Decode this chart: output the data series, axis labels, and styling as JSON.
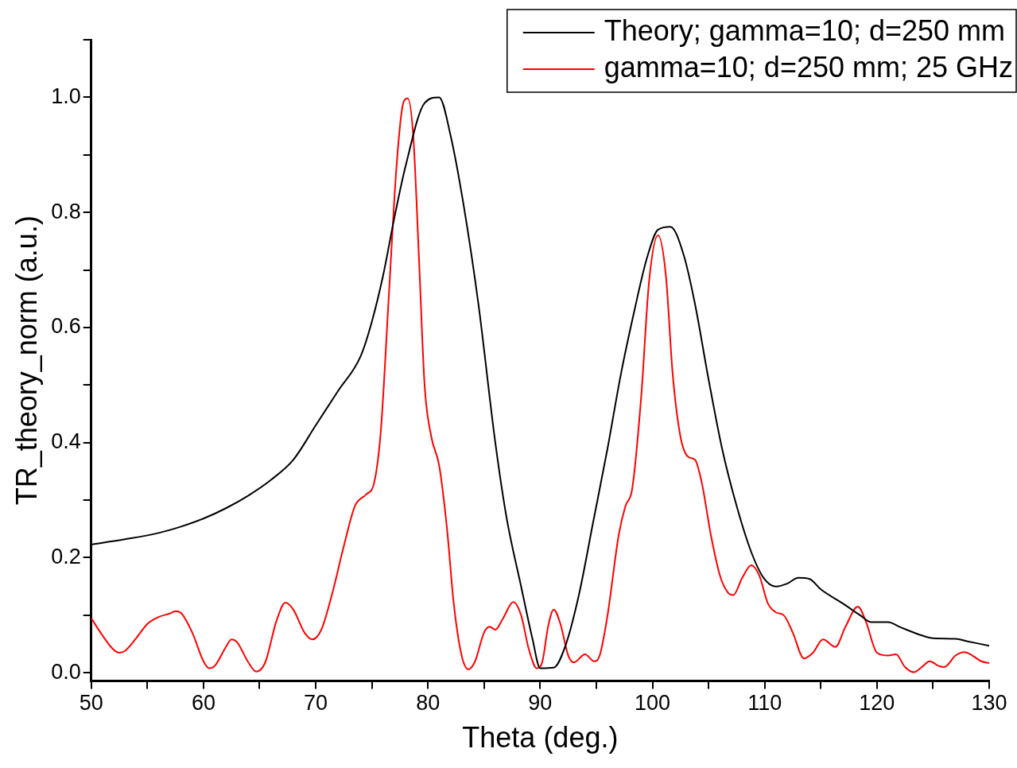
{
  "chart_data": {
    "type": "line",
    "xlabel": "Theta (deg.)",
    "ylabel": "TR_theory_norm (a.u.)",
    "xlim": [
      50,
      130
    ],
    "xticks": [
      50,
      {
        "value": 55,
        "label": null
      },
      60,
      {
        "value": 65,
        "label": null
      },
      70,
      {
        "value": 75,
        "label": null
      },
      80,
      {
        "value": 85,
        "label": null
      },
      90,
      {
        "value": 95,
        "label": null
      },
      100,
      {
        "value": 105,
        "label": null
      },
      110,
      {
        "value": 115,
        "label": null
      },
      120,
      {
        "value": 125,
        "label": null
      },
      130
    ],
    "ylim": [
      -0.014,
      1.1
    ],
    "yticks": [
      {
        "value": 0,
        "label": "0.0"
      },
      {
        "value": 0.1,
        "label": null
      },
      {
        "value": 0.2,
        "label": "0.2"
      },
      {
        "value": 0.3,
        "label": null
      },
      {
        "value": 0.4,
        "label": "0.4"
      },
      {
        "value": 0.5,
        "label": null
      },
      {
        "value": 0.6,
        "label": "0.6"
      },
      {
        "value": 0.7,
        "label": null
      },
      {
        "value": 0.8,
        "label": "0.8"
      },
      {
        "value": 0.9,
        "label": null
      },
      {
        "value": 1.0,
        "label": "1.0"
      },
      {
        "value": 1.1,
        "label": null
      }
    ],
    "legend": "top right",
    "marker": "none",
    "line_style": "solid",
    "series": [
      {
        "name": "Theory; gamma=10; d=250 mm",
        "color": "#000000",
        "x": [
          50,
          53,
          56,
          58,
          60,
          62,
          64,
          66,
          68,
          70,
          72,
          74,
          75,
          76,
          77,
          78,
          79.7,
          81,
          82,
          83.2,
          84.5,
          86,
          87,
          88.3,
          89.3,
          90,
          91.2,
          92.3,
          93.5,
          94.7,
          96,
          97.2,
          98.4,
          99.5,
          100.5,
          101.6,
          102.8,
          103.8,
          105,
          106.2,
          107.5,
          108.8,
          109.9,
          111,
          112,
          113,
          114,
          115,
          117,
          118.5,
          119.5,
          121,
          122,
          124,
          125,
          127,
          128,
          130
        ],
        "values": [
          0.223,
          0.232,
          0.243,
          0.254,
          0.268,
          0.286,
          0.308,
          0.335,
          0.37,
          0.43,
          0.49,
          0.55,
          0.61,
          0.69,
          0.79,
          0.88,
          0.99,
          1.0,
          0.935,
          0.81,
          0.64,
          0.4,
          0.27,
          0.15,
          0.06,
          0.008,
          0.009,
          0.05,
          0.14,
          0.26,
          0.39,
          0.52,
          0.63,
          0.72,
          0.77,
          0.775,
          0.725,
          0.64,
          0.51,
          0.39,
          0.29,
          0.21,
          0.165,
          0.15,
          0.155,
          0.165,
          0.163,
          0.145,
          0.12,
          0.1,
          0.088,
          0.088,
          0.08,
          0.065,
          0.06,
          0.059,
          0.055,
          0.047
        ]
      },
      {
        "name": "gamma=10; d=250 mm; 25 GHz",
        "color": "#ff0000",
        "x": [
          50,
          51,
          52,
          52.5,
          53,
          54,
          55,
          56,
          57,
          57.5,
          58,
          59,
          60,
          60.5,
          61,
          62,
          62.5,
          63,
          64,
          64.7,
          65.5,
          66.5,
          67.3,
          68,
          69,
          69.7,
          70.5,
          71.5,
          72.5,
          73.5,
          74.5,
          75.2,
          75.8,
          76.5,
          77.2,
          77.8,
          78.2,
          78.7,
          79.2,
          79.7,
          80.3,
          81,
          81.7,
          82.3,
          83,
          83.6,
          84.2,
          85,
          85.5,
          86,
          86.7,
          87.6,
          88.3,
          89,
          89.7,
          90.2,
          90.7,
          91.2,
          91.8,
          92.5,
          93,
          94,
          94.8,
          95.3,
          96,
          97,
          97.6,
          98.2,
          99,
          99.7,
          100.5,
          101.2,
          101.8,
          102.5,
          103.2,
          103.8,
          104.4,
          105.2,
          106,
          106.7,
          107.2,
          108,
          108.8,
          109.5,
          110.3,
          111,
          111.7,
          112.5,
          113.5,
          114.3,
          115.2,
          116.3,
          117.2,
          118.3,
          119,
          120,
          121,
          121.7,
          122.5,
          123.3,
          124,
          124.7,
          125.5,
          126,
          127,
          127.8,
          128.5,
          129.3,
          130
        ],
        "values": [
          0.095,
          0.065,
          0.04,
          0.035,
          0.038,
          0.06,
          0.085,
          0.097,
          0.103,
          0.107,
          0.104,
          0.07,
          0.02,
          0.008,
          0.012,
          0.045,
          0.058,
          0.053,
          0.018,
          0.002,
          0.018,
          0.09,
          0.122,
          0.11,
          0.07,
          0.058,
          0.075,
          0.14,
          0.22,
          0.29,
          0.31,
          0.33,
          0.42,
          0.65,
          0.88,
          0.99,
          0.998,
          0.93,
          0.72,
          0.5,
          0.41,
          0.36,
          0.25,
          0.12,
          0.03,
          0.006,
          0.02,
          0.07,
          0.08,
          0.075,
          0.095,
          0.123,
          0.1,
          0.04,
          0.008,
          0.02,
          0.08,
          0.11,
          0.085,
          0.03,
          0.018,
          0.032,
          0.02,
          0.03,
          0.1,
          0.24,
          0.29,
          0.32,
          0.48,
          0.68,
          0.76,
          0.69,
          0.52,
          0.41,
          0.375,
          0.37,
          0.33,
          0.24,
          0.17,
          0.14,
          0.135,
          0.165,
          0.187,
          0.17,
          0.12,
          0.105,
          0.1,
          0.07,
          0.025,
          0.035,
          0.058,
          0.045,
          0.08,
          0.115,
          0.09,
          0.035,
          0.03,
          0.032,
          0.01,
          0.001,
          0.01,
          0.02,
          0.012,
          0.01,
          0.03,
          0.036,
          0.03,
          0.02,
          0.017
        ]
      }
    ]
  }
}
